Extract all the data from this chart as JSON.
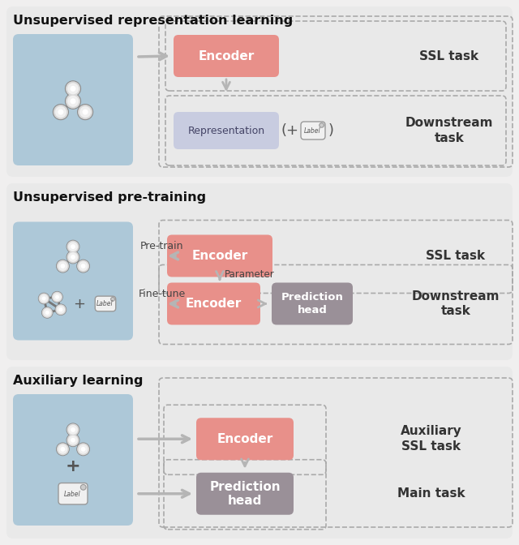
{
  "bg_color": "#f0efef",
  "section_bg": "#e9e9e9",
  "graph_bg": "#adc8d8",
  "encoder_color": "#e8908a",
  "repr_color": "#c8cce0",
  "pred_color": "#9a9098",
  "arrow_color": "#b0b0b0",
  "dashed_color": "#aaaaaa",
  "title_color": "#111111",
  "white": "#ffffff",
  "dark_text": "#333333",
  "section_titles": [
    "Unsupervised representation learning",
    "Unsupervised pre-training",
    "Auxiliary learning"
  ],
  "ssl_task_label": "SSL task",
  "encoder_label": "Encoder",
  "repr_label": "Representation",
  "pred_label": "Prediction\nhead",
  "pretrain_label": "Pre-train",
  "finetune_label": "Fine-tune",
  "param_label": "Parameter",
  "downstream_label": "Downstream\ntask",
  "aux_ssl_label": "Auxiliary\nSSL task",
  "main_task_label": "Main task"
}
